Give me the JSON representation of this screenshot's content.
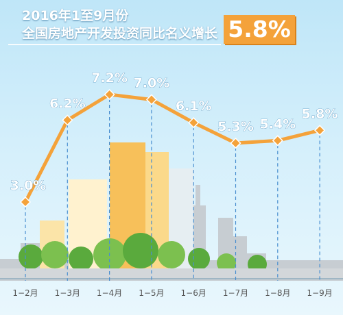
{
  "title": {
    "line1": "2016年1至9月份",
    "line2": "全国房地产开发投资同比名义增长",
    "highlight": "5.8%"
  },
  "colors": {
    "line": "#f4a23a",
    "point": "#f4a23a",
    "label": "#ffffff",
    "badge": "#f4a23a",
    "axis_text": "#555555",
    "guide": "#4a8fd0"
  },
  "chart_data": {
    "type": "line",
    "categories": [
      "1−2月",
      "1−3月",
      "1−4月",
      "1−5月",
      "1−6月",
      "1−7月",
      "1−8月",
      "1−9月"
    ],
    "series": [
      {
        "values": [
          3.0,
          6.2,
          7.2,
          7.0,
          6.1,
          5.3,
          5.4,
          5.8
        ]
      }
    ],
    "data_labels": [
      "3.0%",
      "6.2%",
      "7.2%",
      "7.0%",
      "6.1%",
      "5.3%",
      "5.4%",
      "5.8%"
    ],
    "title": "2016年1至9月份 全国房地产开发投资同比名义增长",
    "xlabel": "",
    "ylabel": "",
    "ylim": [
      3.0,
      7.2
    ],
    "grid": false,
    "legend": "none"
  }
}
